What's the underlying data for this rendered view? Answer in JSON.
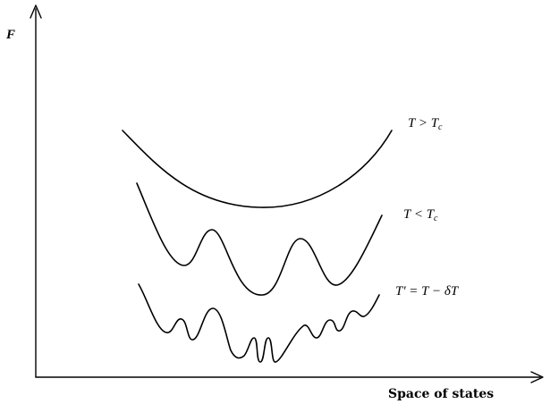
{
  "axes": {
    "y_label": "F",
    "x_label": "Space of states"
  },
  "curves": [
    {
      "id": "above-critical",
      "label": "T > Tc",
      "label_main": "T > T",
      "label_sub": "c"
    },
    {
      "id": "below-critical",
      "label": "T < Tc",
      "label_main": "T < T",
      "label_sub": "c"
    },
    {
      "id": "lowered",
      "label": "T' = T − δT"
    }
  ],
  "colors": {
    "ink": "#000000",
    "background": "#ffffff"
  }
}
